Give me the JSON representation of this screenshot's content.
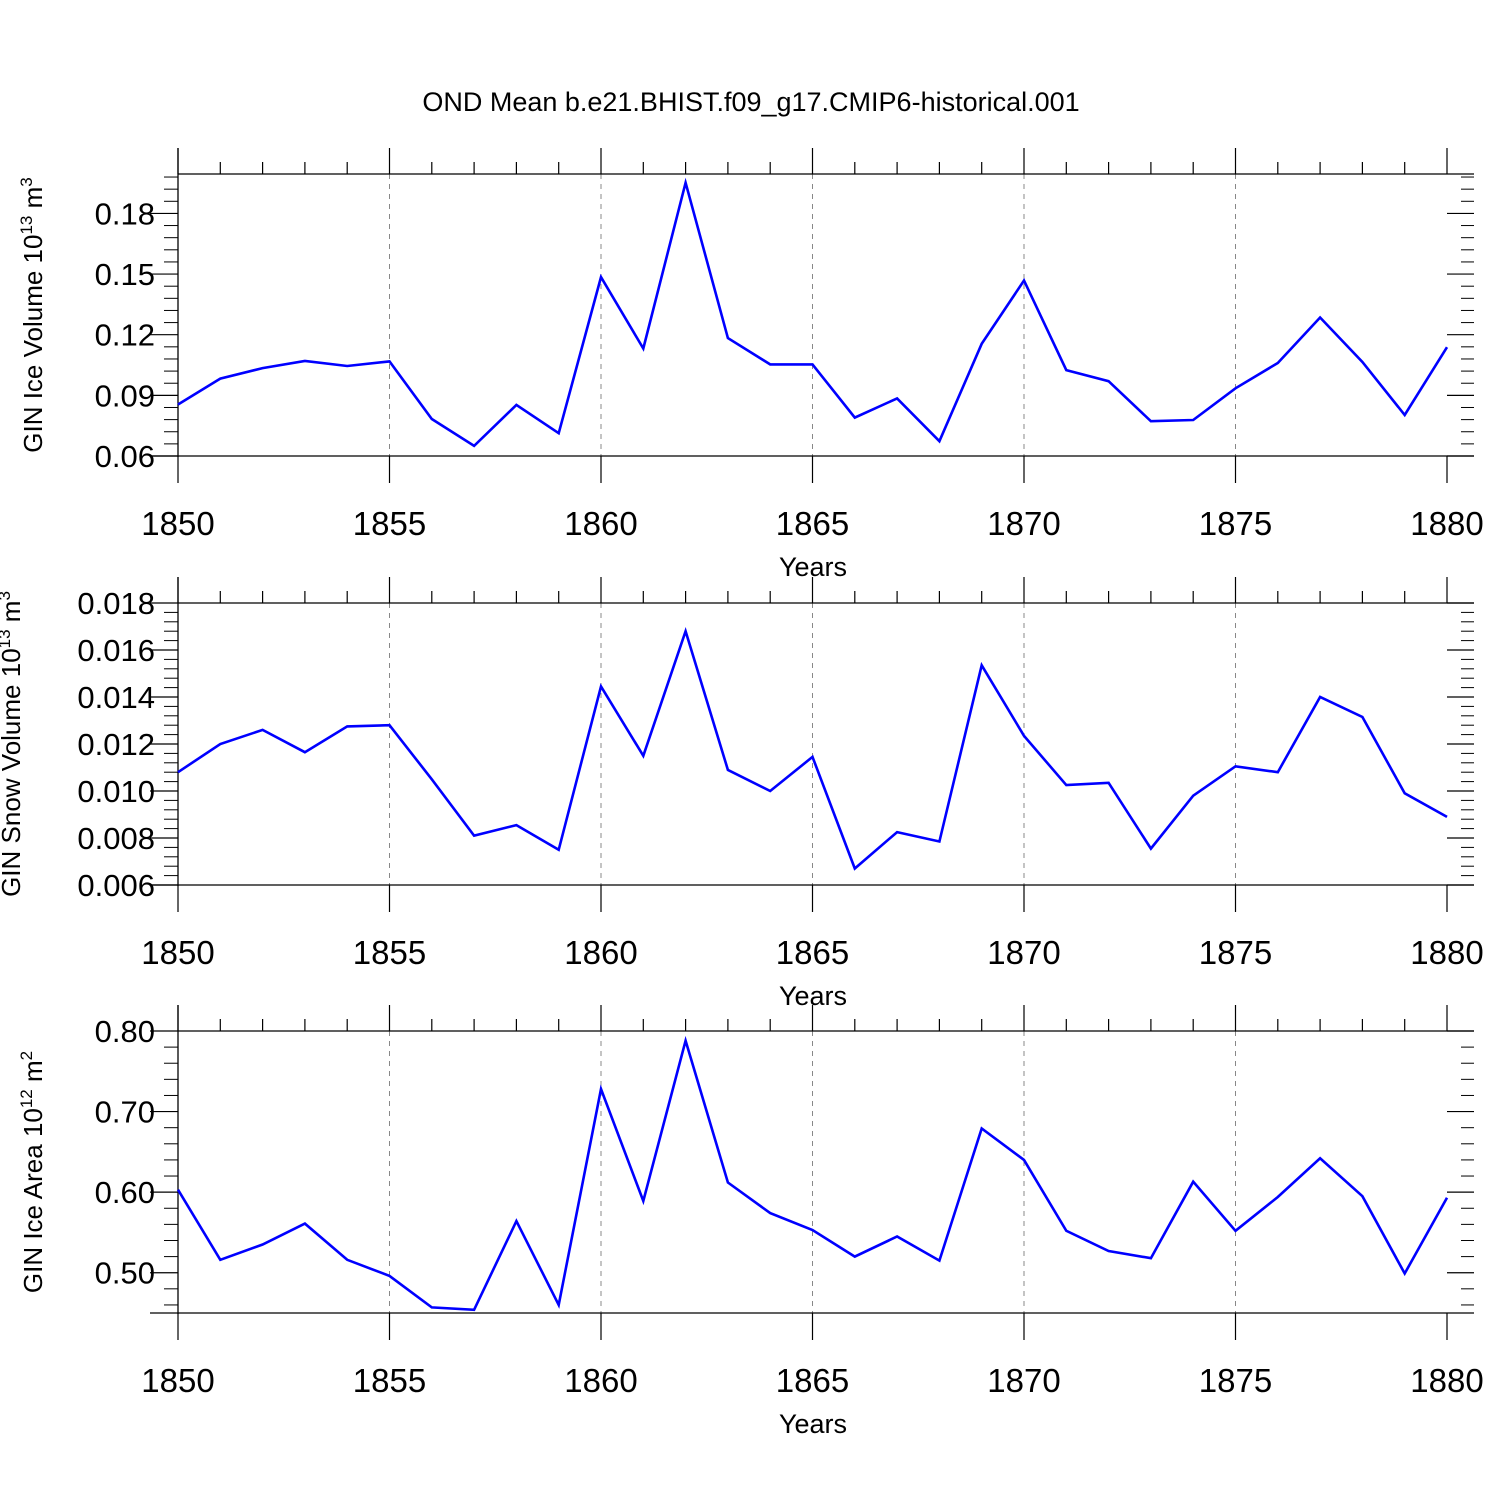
{
  "title": "OND Mean b.e21.BHIST.f09_g17.CMIP6-historical.001",
  "colors": {
    "line": "#0000ff",
    "axis": "#000000",
    "grid": "#888888"
  },
  "chart_data": [
    {
      "type": "line",
      "ylabel_main": "GIN Ice Volume 10",
      "ylabel_sup": "13",
      "ylabel_unit": " m",
      "ylabel_unit_sup": "3",
      "xlabel": "Years",
      "xlim": [
        1850,
        1880
      ],
      "ylim": [
        0.06,
        0.1995
      ],
      "yticks": [
        0.06,
        0.09,
        0.12,
        0.15,
        0.18
      ],
      "ytick_labels": [
        "0.06",
        "0.09",
        "0.12",
        "0.15",
        "0.18"
      ],
      "xticks": [
        1850,
        1855,
        1860,
        1865,
        1870,
        1875,
        1880
      ],
      "xtick_labels": [
        "1850",
        "1855",
        "1860",
        "1865",
        "1870",
        "1875",
        "1880"
      ],
      "x": [
        1850,
        1851,
        1852,
        1853,
        1854,
        1855,
        1856,
        1857,
        1858,
        1859,
        1860,
        1861,
        1862,
        1863,
        1864,
        1865,
        1866,
        1867,
        1868,
        1869,
        1870,
        1871,
        1872,
        1873,
        1874,
        1875,
        1876,
        1877,
        1878,
        1879,
        1880
      ],
      "values": [
        0.0855,
        0.0983,
        0.1035,
        0.107,
        0.1045,
        0.1068,
        0.0783,
        0.065,
        0.0853,
        0.0713,
        0.1485,
        0.1132,
        0.1952,
        0.1183,
        0.1053,
        0.1053,
        0.079,
        0.0885,
        0.0673,
        0.1155,
        0.1468,
        0.1025,
        0.097,
        0.0772,
        0.0778,
        0.0935,
        0.106,
        0.1285,
        0.1065,
        0.0803,
        0.1138
      ]
    },
    {
      "type": "line",
      "ylabel_main": "GIN Snow Volume 10",
      "ylabel_sup": "13",
      "ylabel_unit": " m",
      "ylabel_unit_sup": "3",
      "xlabel": "Years",
      "xlim": [
        1850,
        1880
      ],
      "ylim": [
        0.006,
        0.018
      ],
      "yticks": [
        0.006,
        0.008,
        0.01,
        0.012,
        0.014,
        0.016,
        0.018
      ],
      "ytick_labels": [
        "0.006",
        "0.008",
        "0.010",
        "0.012",
        "0.014",
        "0.016",
        "0.018"
      ],
      "xticks": [
        1850,
        1855,
        1860,
        1865,
        1870,
        1875,
        1880
      ],
      "xtick_labels": [
        "1850",
        "1855",
        "1860",
        "1865",
        "1870",
        "1875",
        "1880"
      ],
      "x": [
        1850,
        1851,
        1852,
        1853,
        1854,
        1855,
        1856,
        1857,
        1858,
        1859,
        1860,
        1861,
        1862,
        1863,
        1864,
        1865,
        1866,
        1867,
        1868,
        1869,
        1870,
        1871,
        1872,
        1873,
        1874,
        1875,
        1876,
        1877,
        1878,
        1879,
        1880
      ],
      "values": [
        0.0108,
        0.012,
        0.0126,
        0.01165,
        0.01275,
        0.0128,
        0.0105,
        0.0081,
        0.00855,
        0.0075,
        0.01445,
        0.0115,
        0.0168,
        0.0109,
        0.01,
        0.01145,
        0.0067,
        0.00825,
        0.00785,
        0.01535,
        0.01235,
        0.01025,
        0.01035,
        0.00755,
        0.0098,
        0.01105,
        0.0108,
        0.014,
        0.01315,
        0.0099,
        0.0089
      ]
    },
    {
      "type": "line",
      "ylabel_main": "GIN Ice Area 10",
      "ylabel_sup": "12",
      "ylabel_unit": " m",
      "ylabel_unit_sup": "2",
      "xlabel": "Years",
      "xlim": [
        1850,
        1880
      ],
      "ylim": [
        0.45,
        0.8
      ],
      "yticks": [
        0.5,
        0.6,
        0.7,
        0.8
      ],
      "ytick_labels": [
        "0.50",
        "0.60",
        "0.70",
        "0.80"
      ],
      "xticks": [
        1850,
        1855,
        1860,
        1865,
        1870,
        1875,
        1880
      ],
      "xtick_labels": [
        "1850",
        "1855",
        "1860",
        "1865",
        "1870",
        "1875",
        "1880"
      ],
      "x": [
        1850,
        1851,
        1852,
        1853,
        1854,
        1855,
        1856,
        1857,
        1858,
        1859,
        1860,
        1861,
        1862,
        1863,
        1864,
        1865,
        1866,
        1867,
        1868,
        1869,
        1870,
        1871,
        1872,
        1873,
        1874,
        1875,
        1876,
        1877,
        1878,
        1879,
        1880
      ],
      "values": [
        0.603,
        0.516,
        0.535,
        0.561,
        0.516,
        0.496,
        0.457,
        0.454,
        0.564,
        0.46,
        0.728,
        0.589,
        0.788,
        0.612,
        0.574,
        0.553,
        0.52,
        0.545,
        0.515,
        0.679,
        0.64,
        0.552,
        0.527,
        0.518,
        0.613,
        0.552,
        0.594,
        0.642,
        0.595,
        0.499,
        0.593
      ]
    }
  ]
}
